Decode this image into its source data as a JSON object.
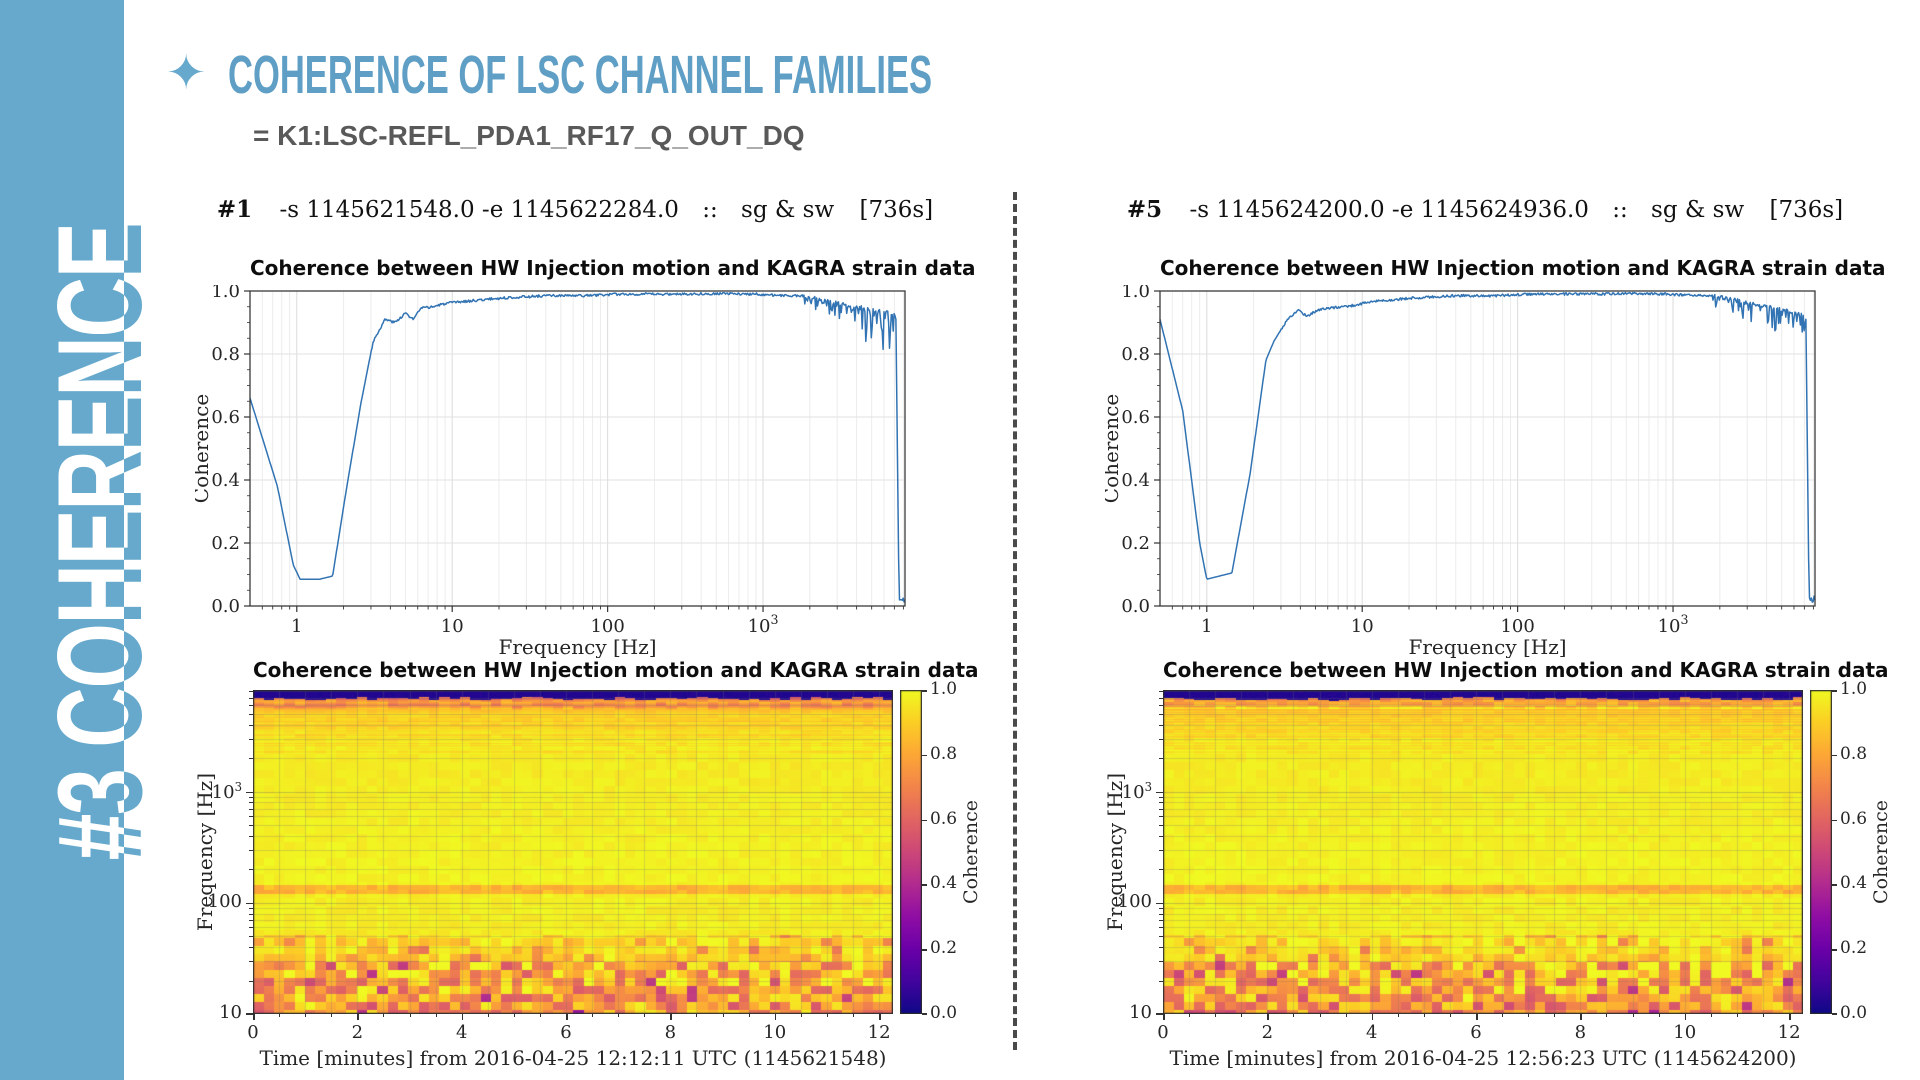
{
  "slide": {
    "sidebar": {
      "label": "#3 COHERENCE",
      "color": "#66a9cc"
    },
    "bullet_icon": "✦",
    "title": "COHERENCE OF LSC CHANNEL FAMILIES",
    "subtitle": "= K1:LSC-REFL_PDA1_RF17_Q_OUT_DQ",
    "title_color": "#5f9fc5"
  },
  "panels": [
    {
      "header": {
        "num": "#1",
        "range": "-s 1145621548.0 -e 1145622284.0",
        "sep": "::",
        "mode": "sg & sw",
        "duration": "[736s]"
      }
    },
    {
      "header": {
        "num": "#5",
        "range": "-s 1145624200.0 -e 1145624936.0",
        "sep": "::",
        "mode": "sg & sw",
        "duration": "[736s]"
      }
    }
  ],
  "chart_data": [
    {
      "type": "line",
      "title": "Coherence between HW Injection motion and KAGRA strain data",
      "xlabel": "Frequency [Hz]",
      "ylabel": "Coherence",
      "xscale": "log",
      "xlim": [
        0.5,
        8192
      ],
      "ylim": [
        0.0,
        1.0
      ],
      "xticks": [
        "1",
        "10",
        "100",
        "10^3"
      ],
      "yticks": [
        "0.0",
        "0.2",
        "0.4",
        "0.6",
        "0.8",
        "1.0"
      ],
      "grid": true,
      "line_color": "#3173b3",
      "seed": 3,
      "anchor_points": [
        [
          0.5,
          0.66
        ],
        [
          0.75,
          0.38
        ],
        [
          0.95,
          0.13
        ],
        [
          1.05,
          0.085
        ],
        [
          1.4,
          0.085
        ],
        [
          1.7,
          0.095
        ],
        [
          2.1,
          0.38
        ],
        [
          2.6,
          0.65
        ],
        [
          3.1,
          0.84
        ],
        [
          3.7,
          0.91
        ],
        [
          4.3,
          0.9
        ],
        [
          5.0,
          0.93
        ],
        [
          5.6,
          0.91
        ],
        [
          6.3,
          0.945
        ],
        [
          7.5,
          0.95
        ],
        [
          9,
          0.96
        ],
        [
          11,
          0.965
        ],
        [
          14,
          0.97
        ],
        [
          18,
          0.975
        ],
        [
          25,
          0.98
        ],
        [
          40,
          0.985
        ],
        [
          70,
          0.985
        ],
        [
          120,
          0.99
        ],
        [
          250,
          0.99
        ],
        [
          500,
          0.992
        ],
        [
          900,
          0.99
        ],
        [
          1400,
          0.985
        ],
        [
          1800,
          0.985
        ]
      ],
      "noise_zone": {
        "start": 1800,
        "end": 7150,
        "base_start": 0.985,
        "base_end": 0.925,
        "spike_depth": 0.16
      },
      "cutoff": {
        "freq": 7150,
        "tail": 0.012
      }
    },
    {
      "type": "heatmap",
      "title": "Coherence between HW Injection motion and KAGRA strain data",
      "xlabel": "Time [minutes] from 2016-04-25 12:12:11 UTC (1145621548)",
      "ylabel": "Frequency [Hz]",
      "colorbar_label": "Coherence",
      "colormap": "plasma",
      "xlim": [
        0,
        12.2667
      ],
      "xticks": [
        0,
        2,
        4,
        6,
        8,
        10,
        12
      ],
      "ylim_hz": [
        10,
        8192
      ],
      "yticks": [
        "10^3",
        "100",
        "10"
      ],
      "colorbar_ticks": [
        "0.0",
        "0.2",
        "0.4",
        "0.6",
        "0.8",
        "1.0"
      ],
      "time_bins": 62,
      "seed": 11,
      "bands": [
        {
          "f_min": 6900,
          "f_max": 8192,
          "lo": 0.04,
          "hi": 0.04,
          "jitter": 0.02,
          "style": "solid"
        },
        {
          "f_min": 5600,
          "f_max": 6900,
          "lo": 0.88,
          "hi": 0.72,
          "jitter": 0.15,
          "style": "striation"
        },
        {
          "f_min": 2200,
          "f_max": 5600,
          "lo": 0.965,
          "hi": 0.88,
          "jitter": 0.05,
          "style": "striation"
        },
        {
          "f_min": 145,
          "f_max": 2200,
          "lo": 0.985,
          "hi": 0.965,
          "jitter": 0.02,
          "style": "smooth"
        },
        {
          "f_min": 122,
          "f_max": 145,
          "lo": 0.84,
          "hi": 0.84,
          "jitter": 0.05,
          "style": "smooth"
        },
        {
          "f_min": 52,
          "f_max": 122,
          "lo": 0.97,
          "hi": 0.975,
          "jitter": 0.025,
          "style": "smooth"
        },
        {
          "f_min": 30,
          "f_max": 52,
          "lo": 0.9,
          "hi": 0.94,
          "jitter": 0.09,
          "style": "mottle"
        },
        {
          "f_min": 10,
          "f_max": 30,
          "lo": 0.74,
          "hi": 0.85,
          "jitter": 0.22,
          "style": "mottle"
        }
      ]
    },
    {
      "type": "line",
      "title": "Coherence between HW Injection motion and KAGRA strain data",
      "xlabel": "Frequency [Hz]",
      "ylabel": "Coherence",
      "xscale": "log",
      "xlim": [
        0.5,
        8192
      ],
      "ylim": [
        0.0,
        1.0
      ],
      "xticks": [
        "1",
        "10",
        "100",
        "10^3"
      ],
      "yticks": [
        "0.0",
        "0.2",
        "0.4",
        "0.6",
        "0.8",
        "1.0"
      ],
      "grid": true,
      "line_color": "#3173b3",
      "seed": 17,
      "anchor_points": [
        [
          0.5,
          0.91
        ],
        [
          0.7,
          0.62
        ],
        [
          0.9,
          0.2
        ],
        [
          1.0,
          0.085
        ],
        [
          1.45,
          0.105
        ],
        [
          1.9,
          0.42
        ],
        [
          2.4,
          0.78
        ],
        [
          2.7,
          0.84
        ],
        [
          3.3,
          0.91
        ],
        [
          3.9,
          0.94
        ],
        [
          4.4,
          0.92
        ],
        [
          5.2,
          0.94
        ],
        [
          6.0,
          0.945
        ],
        [
          7.5,
          0.95
        ],
        [
          9,
          0.955
        ],
        [
          11,
          0.965
        ],
        [
          14,
          0.97
        ],
        [
          18,
          0.975
        ],
        [
          25,
          0.98
        ],
        [
          40,
          0.985
        ],
        [
          70,
          0.985
        ],
        [
          120,
          0.99
        ],
        [
          250,
          0.99
        ],
        [
          500,
          0.992
        ],
        [
          900,
          0.99
        ],
        [
          1400,
          0.985
        ],
        [
          1800,
          0.985
        ]
      ],
      "noise_zone": {
        "start": 1800,
        "end": 7150,
        "base_start": 0.985,
        "base_end": 0.925,
        "spike_depth": 0.16
      },
      "cutoff": {
        "freq": 7150,
        "tail": 0.012
      }
    },
    {
      "type": "heatmap",
      "title": "Coherence between HW Injection motion and KAGRA strain data",
      "xlabel": "Time [minutes] from 2016-04-25 12:56:23 UTC (1145624200)",
      "ylabel": "Frequency [Hz]",
      "colorbar_label": "Coherence",
      "colormap": "plasma",
      "xlim": [
        0,
        12.2667
      ],
      "xticks": [
        0,
        2,
        4,
        6,
        8,
        10,
        12
      ],
      "ylim_hz": [
        10,
        8192
      ],
      "yticks": [
        "10^3",
        "100",
        "10"
      ],
      "colorbar_ticks": [
        "0.0",
        "0.2",
        "0.4",
        "0.6",
        "0.8",
        "1.0"
      ],
      "time_bins": 62,
      "seed": 29,
      "bands": [
        {
          "f_min": 6900,
          "f_max": 8192,
          "lo": 0.04,
          "hi": 0.04,
          "jitter": 0.02,
          "style": "solid"
        },
        {
          "f_min": 5600,
          "f_max": 6900,
          "lo": 0.88,
          "hi": 0.72,
          "jitter": 0.15,
          "style": "striation"
        },
        {
          "f_min": 2200,
          "f_max": 5600,
          "lo": 0.965,
          "hi": 0.88,
          "jitter": 0.05,
          "style": "striation"
        },
        {
          "f_min": 145,
          "f_max": 2200,
          "lo": 0.985,
          "hi": 0.965,
          "jitter": 0.02,
          "style": "smooth"
        },
        {
          "f_min": 122,
          "f_max": 145,
          "lo": 0.84,
          "hi": 0.84,
          "jitter": 0.05,
          "style": "smooth"
        },
        {
          "f_min": 52,
          "f_max": 122,
          "lo": 0.97,
          "hi": 0.975,
          "jitter": 0.025,
          "style": "smooth"
        },
        {
          "f_min": 30,
          "f_max": 52,
          "lo": 0.9,
          "hi": 0.94,
          "jitter": 0.09,
          "style": "mottle"
        },
        {
          "f_min": 10,
          "f_max": 30,
          "lo": 0.74,
          "hi": 0.85,
          "jitter": 0.22,
          "style": "mottle"
        }
      ]
    }
  ]
}
